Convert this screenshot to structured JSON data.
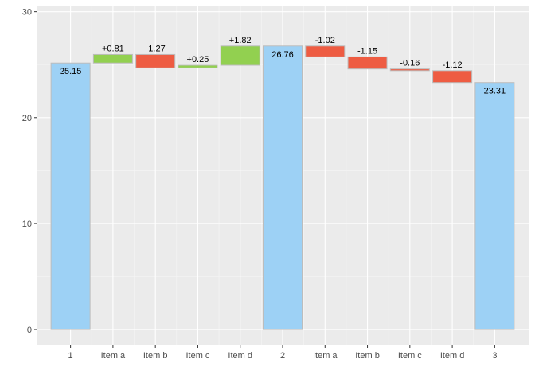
{
  "chart_data": {
    "type": "bar",
    "subtype": "waterfall",
    "title": "",
    "xlabel": "",
    "ylabel": "",
    "ylim": [
      -1.5,
      30.5
    ],
    "yticks": [
      0,
      10,
      20,
      30
    ],
    "grid": true,
    "legend": "none",
    "colors": {
      "panel": "#ebebeb",
      "grid_major": "#ffffff",
      "grid_minor": "#f5f5f5",
      "total": "#9dd1f5",
      "increase": "#92d050",
      "decrease": "#ee5c42",
      "bar_border": "#bdbdbd"
    },
    "bars": [
      {
        "category": "1",
        "kind": "total",
        "start": 0,
        "end": 25.15,
        "label": "25.15"
      },
      {
        "category": "Item a",
        "kind": "increase",
        "start": 25.15,
        "end": 25.96,
        "label": "+0.81"
      },
      {
        "category": "Item b",
        "kind": "decrease",
        "start": 25.96,
        "end": 24.69,
        "label": "-1.27"
      },
      {
        "category": "Item c",
        "kind": "increase",
        "start": 24.69,
        "end": 24.94,
        "label": "+0.25"
      },
      {
        "category": "Item d",
        "kind": "increase",
        "start": 24.94,
        "end": 26.76,
        "label": "+1.82"
      },
      {
        "category": "2",
        "kind": "total",
        "start": 0,
        "end": 26.76,
        "label": "26.76"
      },
      {
        "category": "Item a",
        "kind": "decrease",
        "start": 26.76,
        "end": 25.74,
        "label": "-1.02"
      },
      {
        "category": "Item b",
        "kind": "decrease",
        "start": 25.74,
        "end": 24.59,
        "label": "-1.15"
      },
      {
        "category": "Item c",
        "kind": "decrease",
        "start": 24.59,
        "end": 24.43,
        "label": "-0.16"
      },
      {
        "category": "Item d",
        "kind": "decrease",
        "start": 24.43,
        "end": 23.31,
        "label": "-1.12"
      },
      {
        "category": "3",
        "kind": "total",
        "start": 0,
        "end": 23.31,
        "label": "23.31"
      }
    ]
  }
}
